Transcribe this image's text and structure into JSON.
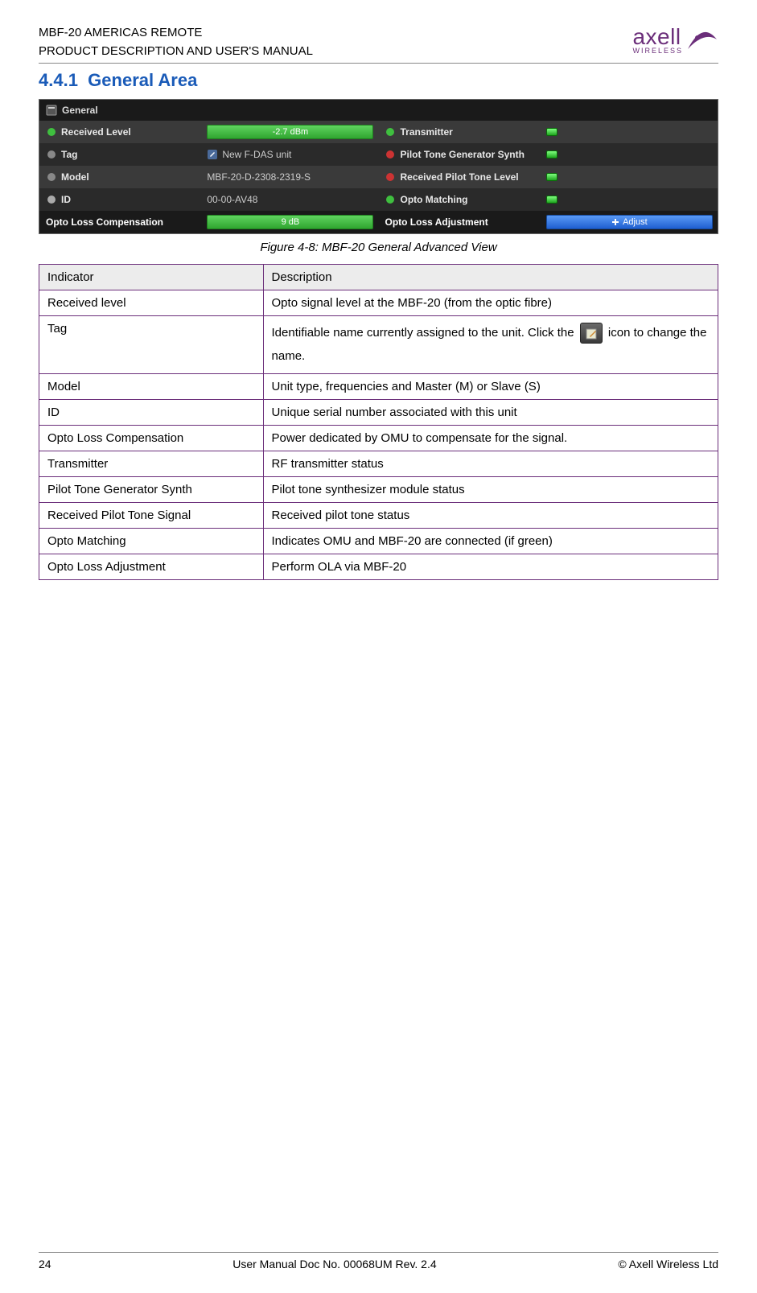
{
  "header": {
    "line1": "MBF-20 AMERICAS REMOTE",
    "line2": "PRODUCT DESCRIPTION AND USER'S MANUAL",
    "logo_text": "axell",
    "logo_sub": "WIRELESS",
    "logo_color": "#6b2e7a"
  },
  "section": {
    "number": "4.4.1",
    "title": "General Area"
  },
  "screenshot": {
    "panel_title": "General",
    "rows_left": [
      {
        "icon": "signal-icon",
        "icon_color": "#3fbf3f",
        "label": "Received Level",
        "value_type": "bar",
        "value": "-2.7 dBm"
      },
      {
        "icon": "tag-icon",
        "icon_color": "#888888",
        "label": "Tag",
        "value_type": "textbtn",
        "value": "New F-DAS unit"
      },
      {
        "icon": "model-icon",
        "icon_color": "#888888",
        "label": "Model",
        "value_type": "text",
        "value": "MBF-20-D-2308-2319-S"
      },
      {
        "icon": "id-icon",
        "icon_color": "#aaaaaa",
        "label": "ID",
        "value_type": "text",
        "value": "00-00-AV48"
      },
      {
        "icon": "",
        "icon_color": "",
        "label": "Opto Loss Compensation",
        "value_type": "bar",
        "value": "9 dB"
      }
    ],
    "rows_right": [
      {
        "icon": "antenna-icon",
        "icon_color": "#3fbf3f",
        "label": "Transmitter",
        "value_type": "led"
      },
      {
        "icon": "wave-icon",
        "icon_color": "#cc3333",
        "label": "Pilot Tone Generator Synth",
        "value_type": "led"
      },
      {
        "icon": "wave-icon",
        "icon_color": "#cc3333",
        "label": "Received Pilot Tone Level",
        "value_type": "led"
      },
      {
        "icon": "plug-icon",
        "icon_color": "#3fbf3f",
        "label": "Opto Matching",
        "value_type": "led"
      },
      {
        "icon": "",
        "icon_color": "",
        "label": "Opto Loss Adjustment",
        "value_type": "button",
        "value": "Adjust"
      }
    ],
    "bg_dark": "#2a2a2a",
    "bg_alt": "#3a3a3a",
    "bar_color": "#3fbf3f",
    "button_color": "#2f6fe0"
  },
  "caption": "Figure 4-8: MBF-20 General Advanced View",
  "table": {
    "header": [
      "Indicator",
      "Description"
    ],
    "rows": [
      [
        "Received level",
        "Opto signal level at the MBF-20 (from the optic fibre)"
      ],
      [
        "Tag",
        "Identifiable name currently assigned to the unit. Click the |ICON| icon to change the name."
      ],
      [
        "Model",
        "Unit type, frequencies and Master (M) or Slave (S)"
      ],
      [
        "ID",
        "Unique serial number  associated with this unit"
      ],
      [
        "Opto Loss Compensation",
        "Power dedicated by OMU to compensate for the signal."
      ],
      [
        "Transmitter",
        "RF transmitter status"
      ],
      [
        "Pilot Tone Generator Synth",
        "Pilot tone synthesizer module status"
      ],
      [
        "Received Pilot Tone Signal",
        "Received pilot tone status"
      ],
      [
        "Opto Matching",
        "Indicates OMU and MBF-20 are connected (if green)"
      ],
      [
        "Opto Loss Adjustment",
        "Perform OLA via MBF-20"
      ]
    ],
    "border_color": "#6b2e7a",
    "header_bg": "#ececec"
  },
  "footer": {
    "page": "24",
    "center": "User Manual Doc No. 00068UM Rev. 2.4",
    "right": "© Axell Wireless Ltd"
  }
}
